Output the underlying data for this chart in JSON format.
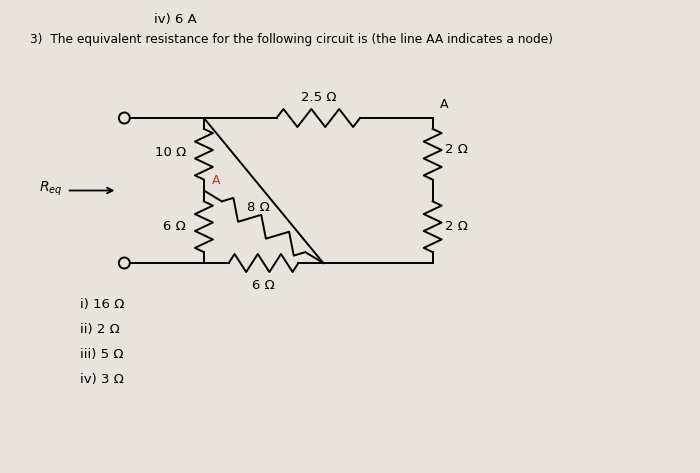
{
  "bg_color": "#e8e3dc",
  "line_color": "#000000",
  "title_text": "3)  The equivalent resistance for the following circuit is (the line AA indicates a node)",
  "header_text": "iv) 6 A",
  "options": [
    "i) 16 Ω",
    "ii) 2 Ω",
    "iii) 5 Ω",
    "iv) 3 Ω"
  ],
  "label_10": "10 Ω",
  "label_6L": "6 Ω",
  "label_25": "2.5 Ω",
  "label_8": "8 Ω",
  "label_6B": "6 Ω",
  "label_2T": "2 Ω",
  "label_2B": "2 Ω",
  "label_Req": "R",
  "label_eq": "eq",
  "label_A_red": "A",
  "label_A_blk": "A"
}
